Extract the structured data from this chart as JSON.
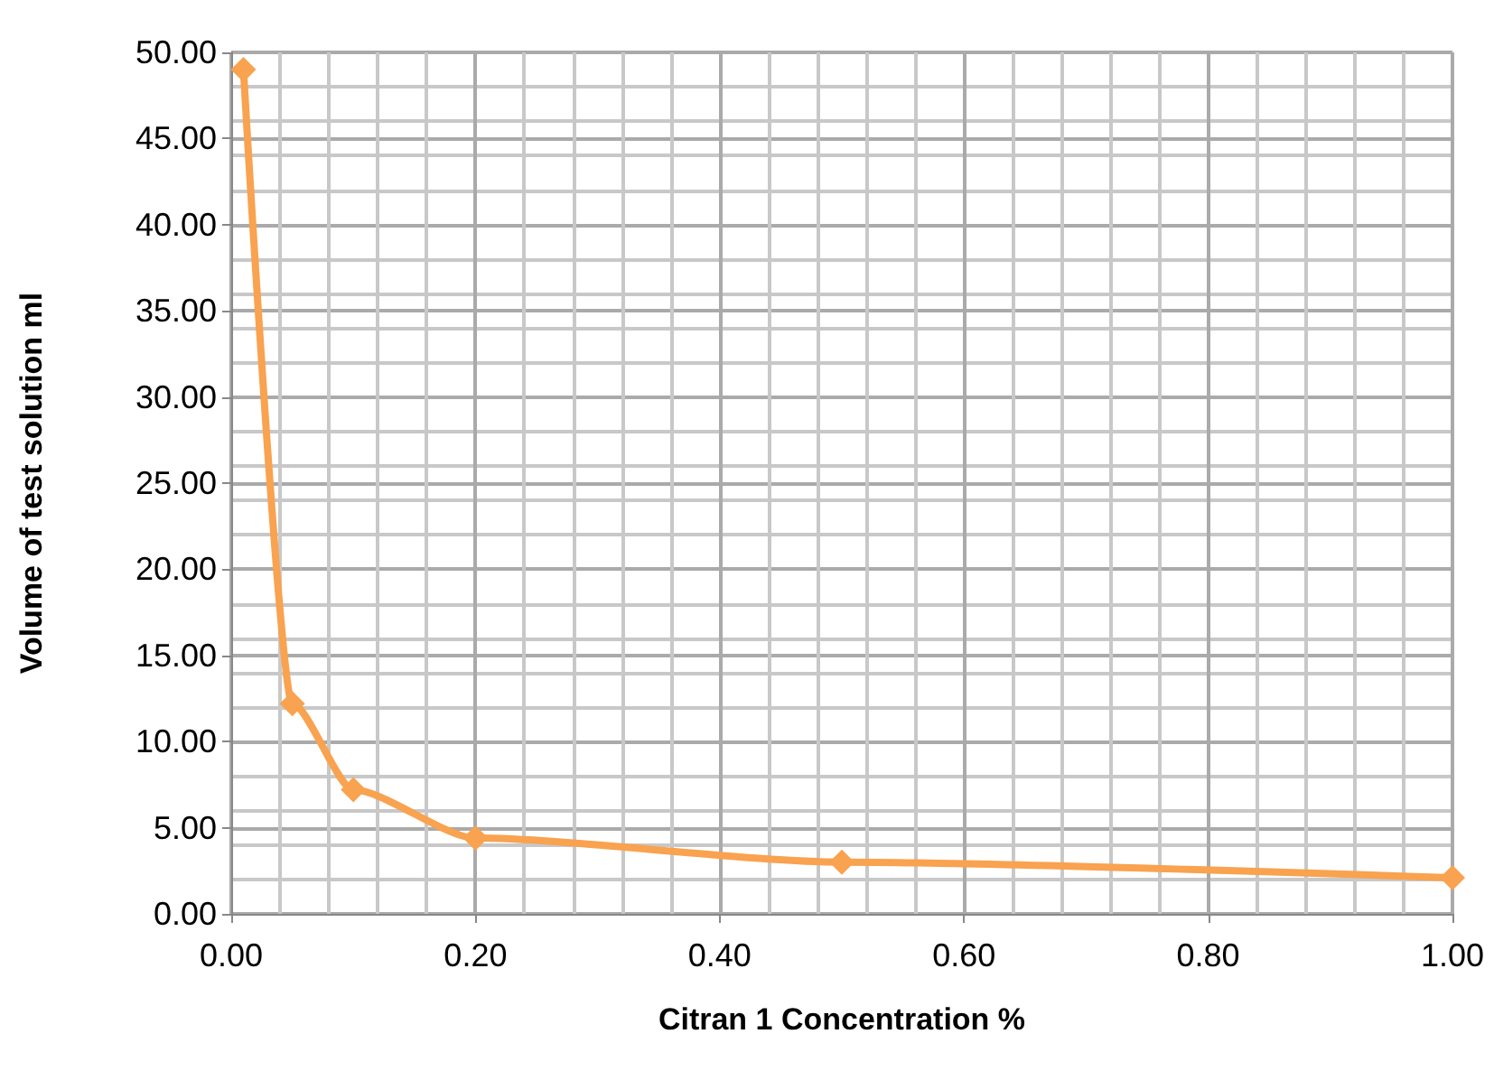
{
  "chart_data": {
    "type": "line",
    "xlabel": "Citran 1 Concentration %",
    "ylabel": "Volume of test solution ml",
    "x": [
      0.01,
      0.05,
      0.1,
      0.2,
      0.5,
      1.0
    ],
    "series": [
      {
        "color": "#f9a24f",
        "values": [
          49,
          12.2,
          7.2,
          4.4,
          3.0,
          2.1
        ]
      }
    ],
    "xlim": [
      0,
      1
    ],
    "xticks": [
      {
        "value": 0,
        "label": "0.00"
      },
      {
        "value": 0.2,
        "label": "0.20"
      },
      {
        "value": 0.4,
        "label": "0.40"
      },
      {
        "value": 0.6,
        "label": "0.60"
      },
      {
        "value": 0.8,
        "label": "0.80"
      },
      {
        "value": 1,
        "label": "1.00"
      }
    ],
    "ylim": [
      0,
      50
    ],
    "yticks": [
      {
        "value": 0,
        "label": "0.00"
      },
      {
        "value": 5,
        "label": "5.00"
      },
      {
        "value": 10,
        "label": "10.00"
      },
      {
        "value": 15,
        "label": "15.00"
      },
      {
        "value": 20,
        "label": "20.00"
      },
      {
        "value": 25,
        "label": "25.00"
      },
      {
        "value": 30,
        "label": "30.00"
      },
      {
        "value": 35,
        "label": "35.00"
      },
      {
        "value": 40,
        "label": "40.00"
      },
      {
        "value": 45,
        "label": "45.00"
      },
      {
        "value": 50,
        "label": "50.00"
      }
    ],
    "grid": true,
    "marker": "diamond",
    "line_style": "solid"
  }
}
